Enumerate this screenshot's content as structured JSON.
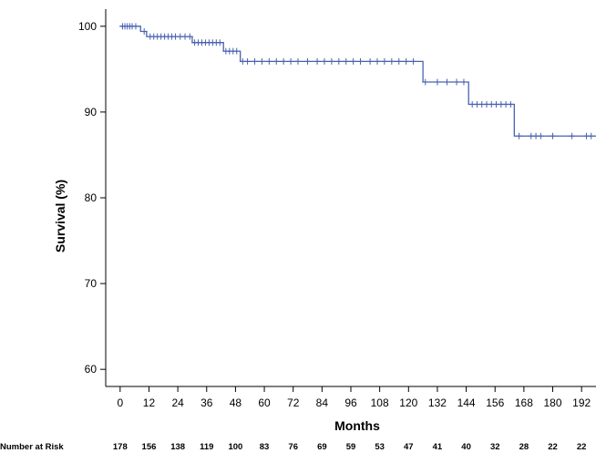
{
  "chart_data": {
    "type": "line",
    "subtype": "kaplan-meier",
    "xlabel": "Months",
    "ylabel": "Survival (%)",
    "xlim": [
      -6,
      198
    ],
    "ylim": [
      58,
      102
    ],
    "x_ticks": [
      0,
      12,
      24,
      36,
      48,
      60,
      72,
      84,
      96,
      108,
      120,
      132,
      144,
      156,
      168,
      180,
      192
    ],
    "y_ticks": [
      60,
      70,
      80,
      90,
      100
    ],
    "grid": false,
    "line_color": "#4a62b0",
    "series": [
      {
        "steps": [
          {
            "x": 0,
            "y": 100
          },
          {
            "x": 8.5,
            "y": 99.4
          },
          {
            "x": 11,
            "y": 98.8
          },
          {
            "x": 30,
            "y": 98.1
          },
          {
            "x": 43,
            "y": 97.1
          },
          {
            "x": 50,
            "y": 95.9
          },
          {
            "x": 126,
            "y": 93.5
          },
          {
            "x": 145,
            "y": 90.9
          },
          {
            "x": 164,
            "y": 87.2
          },
          {
            "x": 198,
            "y": 87.2
          }
        ],
        "censored": [
          {
            "x": 1,
            "y": 100
          },
          {
            "x": 2,
            "y": 100
          },
          {
            "x": 3,
            "y": 100
          },
          {
            "x": 4,
            "y": 100
          },
          {
            "x": 5,
            "y": 100
          },
          {
            "x": 6.5,
            "y": 100
          },
          {
            "x": 10,
            "y": 99.4
          },
          {
            "x": 12.5,
            "y": 98.8
          },
          {
            "x": 14,
            "y": 98.8
          },
          {
            "x": 15.5,
            "y": 98.8
          },
          {
            "x": 17,
            "y": 98.8
          },
          {
            "x": 18.5,
            "y": 98.8
          },
          {
            "x": 20,
            "y": 98.8
          },
          {
            "x": 21.5,
            "y": 98.8
          },
          {
            "x": 23,
            "y": 98.8
          },
          {
            "x": 25,
            "y": 98.8
          },
          {
            "x": 27,
            "y": 98.8
          },
          {
            "x": 29,
            "y": 98.8
          },
          {
            "x": 31,
            "y": 98.1
          },
          {
            "x": 32.5,
            "y": 98.1
          },
          {
            "x": 34,
            "y": 98.1
          },
          {
            "x": 35.5,
            "y": 98.1
          },
          {
            "x": 37,
            "y": 98.1
          },
          {
            "x": 38.5,
            "y": 98.1
          },
          {
            "x": 40,
            "y": 98.1
          },
          {
            "x": 41.5,
            "y": 98.1
          },
          {
            "x": 44,
            "y": 97.1
          },
          {
            "x": 45.5,
            "y": 97.1
          },
          {
            "x": 47,
            "y": 97.1
          },
          {
            "x": 48.5,
            "y": 97.1
          },
          {
            "x": 51,
            "y": 95.9
          },
          {
            "x": 53,
            "y": 95.9
          },
          {
            "x": 56,
            "y": 95.9
          },
          {
            "x": 59,
            "y": 95.9
          },
          {
            "x": 62,
            "y": 95.9
          },
          {
            "x": 65,
            "y": 95.9
          },
          {
            "x": 68,
            "y": 95.9
          },
          {
            "x": 71,
            "y": 95.9
          },
          {
            "x": 74,
            "y": 95.9
          },
          {
            "x": 78,
            "y": 95.9
          },
          {
            "x": 82,
            "y": 95.9
          },
          {
            "x": 85,
            "y": 95.9
          },
          {
            "x": 88,
            "y": 95.9
          },
          {
            "x": 91,
            "y": 95.9
          },
          {
            "x": 94,
            "y": 95.9
          },
          {
            "x": 97,
            "y": 95.9
          },
          {
            "x": 100,
            "y": 95.9
          },
          {
            "x": 104,
            "y": 95.9
          },
          {
            "x": 107,
            "y": 95.9
          },
          {
            "x": 110,
            "y": 95.9
          },
          {
            "x": 113,
            "y": 95.9
          },
          {
            "x": 116,
            "y": 95.9
          },
          {
            "x": 119,
            "y": 95.9
          },
          {
            "x": 122,
            "y": 95.9
          },
          {
            "x": 127,
            "y": 93.5
          },
          {
            "x": 132,
            "y": 93.5
          },
          {
            "x": 136,
            "y": 93.5
          },
          {
            "x": 140,
            "y": 93.5
          },
          {
            "x": 143,
            "y": 93.5
          },
          {
            "x": 146.5,
            "y": 90.9
          },
          {
            "x": 148.5,
            "y": 90.9
          },
          {
            "x": 150.5,
            "y": 90.9
          },
          {
            "x": 152.5,
            "y": 90.9
          },
          {
            "x": 154.5,
            "y": 90.9
          },
          {
            "x": 156.5,
            "y": 90.9
          },
          {
            "x": 158.5,
            "y": 90.9
          },
          {
            "x": 160.5,
            "y": 90.9
          },
          {
            "x": 162.5,
            "y": 90.9
          },
          {
            "x": 166,
            "y": 87.2
          },
          {
            "x": 171,
            "y": 87.2
          },
          {
            "x": 173,
            "y": 87.2
          },
          {
            "x": 175,
            "y": 87.2
          },
          {
            "x": 180,
            "y": 87.2
          },
          {
            "x": 188,
            "y": 87.2
          },
          {
            "x": 194,
            "y": 87.2
          },
          {
            "x": 196,
            "y": 87.2
          }
        ]
      }
    ],
    "risk_table": {
      "label": "Number at Risk",
      "values": [
        178,
        156,
        138,
        119,
        100,
        83,
        76,
        69,
        59,
        53,
        47,
        41,
        40,
        32,
        28,
        22,
        22
      ]
    }
  }
}
